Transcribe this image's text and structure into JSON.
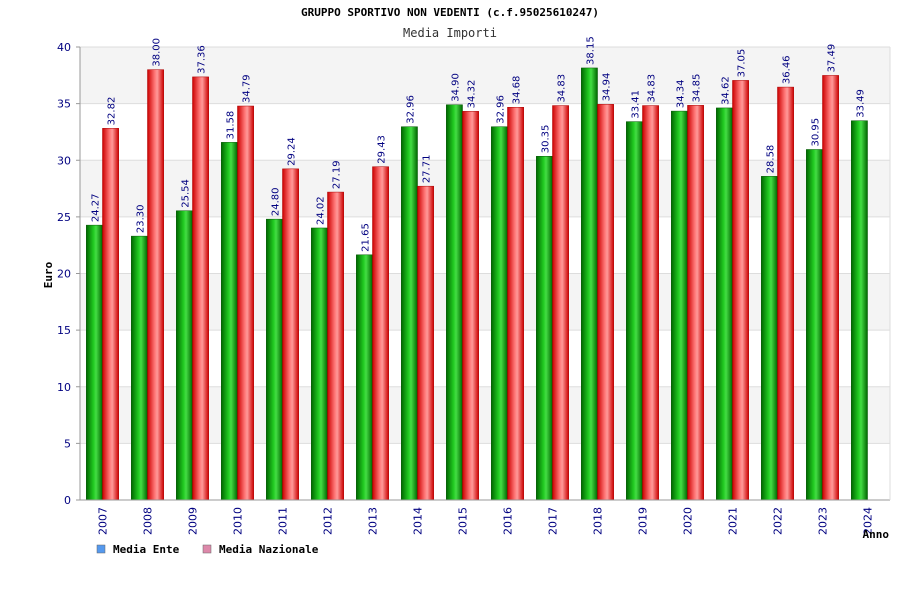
{
  "chart_data": {
    "type": "bar",
    "title": "GRUPPO SPORTIVO NON VEDENTI (c.f.95025610247)",
    "subtitle": "Media Importi",
    "xlabel": "Anno",
    "ylabel": "Euro",
    "ylim": [
      0,
      40
    ],
    "yticks": [
      0,
      5,
      10,
      15,
      20,
      25,
      30,
      35,
      40
    ],
    "grid": true,
    "legend_position": "bottom-left",
    "categories": [
      "2007",
      "2008",
      "2009",
      "2010",
      "2011",
      "2012",
      "2013",
      "2014",
      "2015",
      "2016",
      "2017",
      "2018",
      "2019",
      "2020",
      "2021",
      "2022",
      "2023",
      "2024"
    ],
    "series": [
      {
        "name": "Media Ente",
        "color": "#22aa22",
        "legend_color": "#5599ee",
        "values": [
          24.27,
          23.3,
          25.54,
          31.58,
          24.8,
          24.02,
          21.65,
          32.96,
          34.9,
          32.96,
          30.35,
          38.15,
          33.41,
          34.34,
          34.62,
          28.58,
          30.95,
          33.49
        ],
        "labels": [
          "24.27",
          "23.30",
          "25.54",
          "31.58",
          "24.80",
          "24.02",
          "21.65",
          "32.96",
          "34.90",
          "32.96",
          "30.35",
          "38.15",
          "33.41",
          "34.34",
          "34.62",
          "28.58",
          "30.95",
          "33.49"
        ]
      },
      {
        "name": "Media Nazionale",
        "color": "#ee2222",
        "legend_color": "#dd88aa",
        "values": [
          32.82,
          38.0,
          37.36,
          34.79,
          29.24,
          27.19,
          29.43,
          27.71,
          34.32,
          34.68,
          34.83,
          34.94,
          34.83,
          34.85,
          37.05,
          36.46,
          37.49,
          null
        ],
        "labels": [
          "32.82",
          "38.00",
          "37.36",
          "34.79",
          "29.24",
          "27.19",
          "29.43",
          "27.71",
          "34.32",
          "34.68",
          "34.83",
          "34.94",
          "34.83",
          "34.85",
          "37.05",
          "36.46",
          "37.49",
          null
        ]
      }
    ]
  }
}
